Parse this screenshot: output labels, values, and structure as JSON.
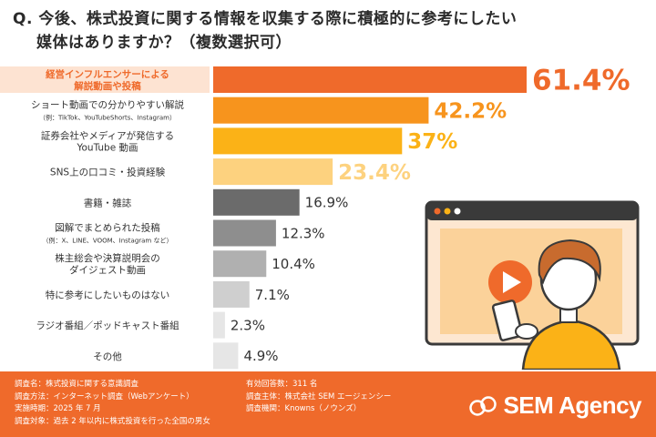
{
  "question": {
    "line1": "Q. 今後、株式投資に関する情報を収集する際に積極的に参考にしたい",
    "line2": "媒体はありますか？（複数選択可）"
  },
  "colors": {
    "accent": "#ef6a2b",
    "bar_top": "#ef6a2b",
    "bar_2": "#f7941d",
    "bar_3": "#fbb217",
    "bar_4": "#fdd27f",
    "bar_gray_dark": "#6b6b6b",
    "bar_gray_mid": "#8e8e8e",
    "bar_gray_light": "#b0b0b0",
    "bar_gray_lighter": "#cfcfcf",
    "bar_gray_lightest": "#e6e6e6"
  },
  "chart_data": {
    "type": "bar",
    "orientation": "horizontal",
    "categories": [
      [
        "経営インフルエンサーによる",
        "解説動画や投稿"
      ],
      [
        "ショート動画での分かりやすい解説",
        "（例：TikTok、YouTubeShorts、Instagram）"
      ],
      [
        "証券会社やメディアが発信する",
        "YouTube 動画"
      ],
      [
        "SNS上の口コミ・投資経験"
      ],
      [
        "書籍・雑誌"
      ],
      [
        "図解でまとめられた投稿",
        "（例：X、LINE、VOOM、Instagram など）"
      ],
      [
        "株主総会や決算説明会の",
        "ダイジェスト動画"
      ],
      [
        "特に参考にしたいものはない"
      ],
      [
        "ラジオ番組／ポッドキャスト番組"
      ],
      [
        "その他"
      ]
    ],
    "values": [
      61.4,
      42.2,
      37,
      23.4,
      16.9,
      12.3,
      10.4,
      7.1,
      2.3,
      4.9
    ],
    "value_labels": [
      "61.4%",
      "42.2%",
      "37%",
      "23.4%",
      "16.9%",
      "12.3%",
      "10.4%",
      "7.1%",
      "2.3%",
      "4.9%"
    ],
    "xlim": [
      0,
      61.4
    ]
  },
  "footer": {
    "left": [
      "調査名：株式投資に関する意識調査",
      "調査方法：インターネット調査（Webアンケート）",
      "実施時期：2025 年 7 月",
      "調査対象：過去 2 年以内に株式投資を行った全国の男女"
    ],
    "right": [
      "有効回答数：311 名",
      "調査主体：株式会社 SEM エージェンシー",
      "調査機関：Knowns（ノウンズ）"
    ],
    "logo_text": "SEM Agency"
  }
}
